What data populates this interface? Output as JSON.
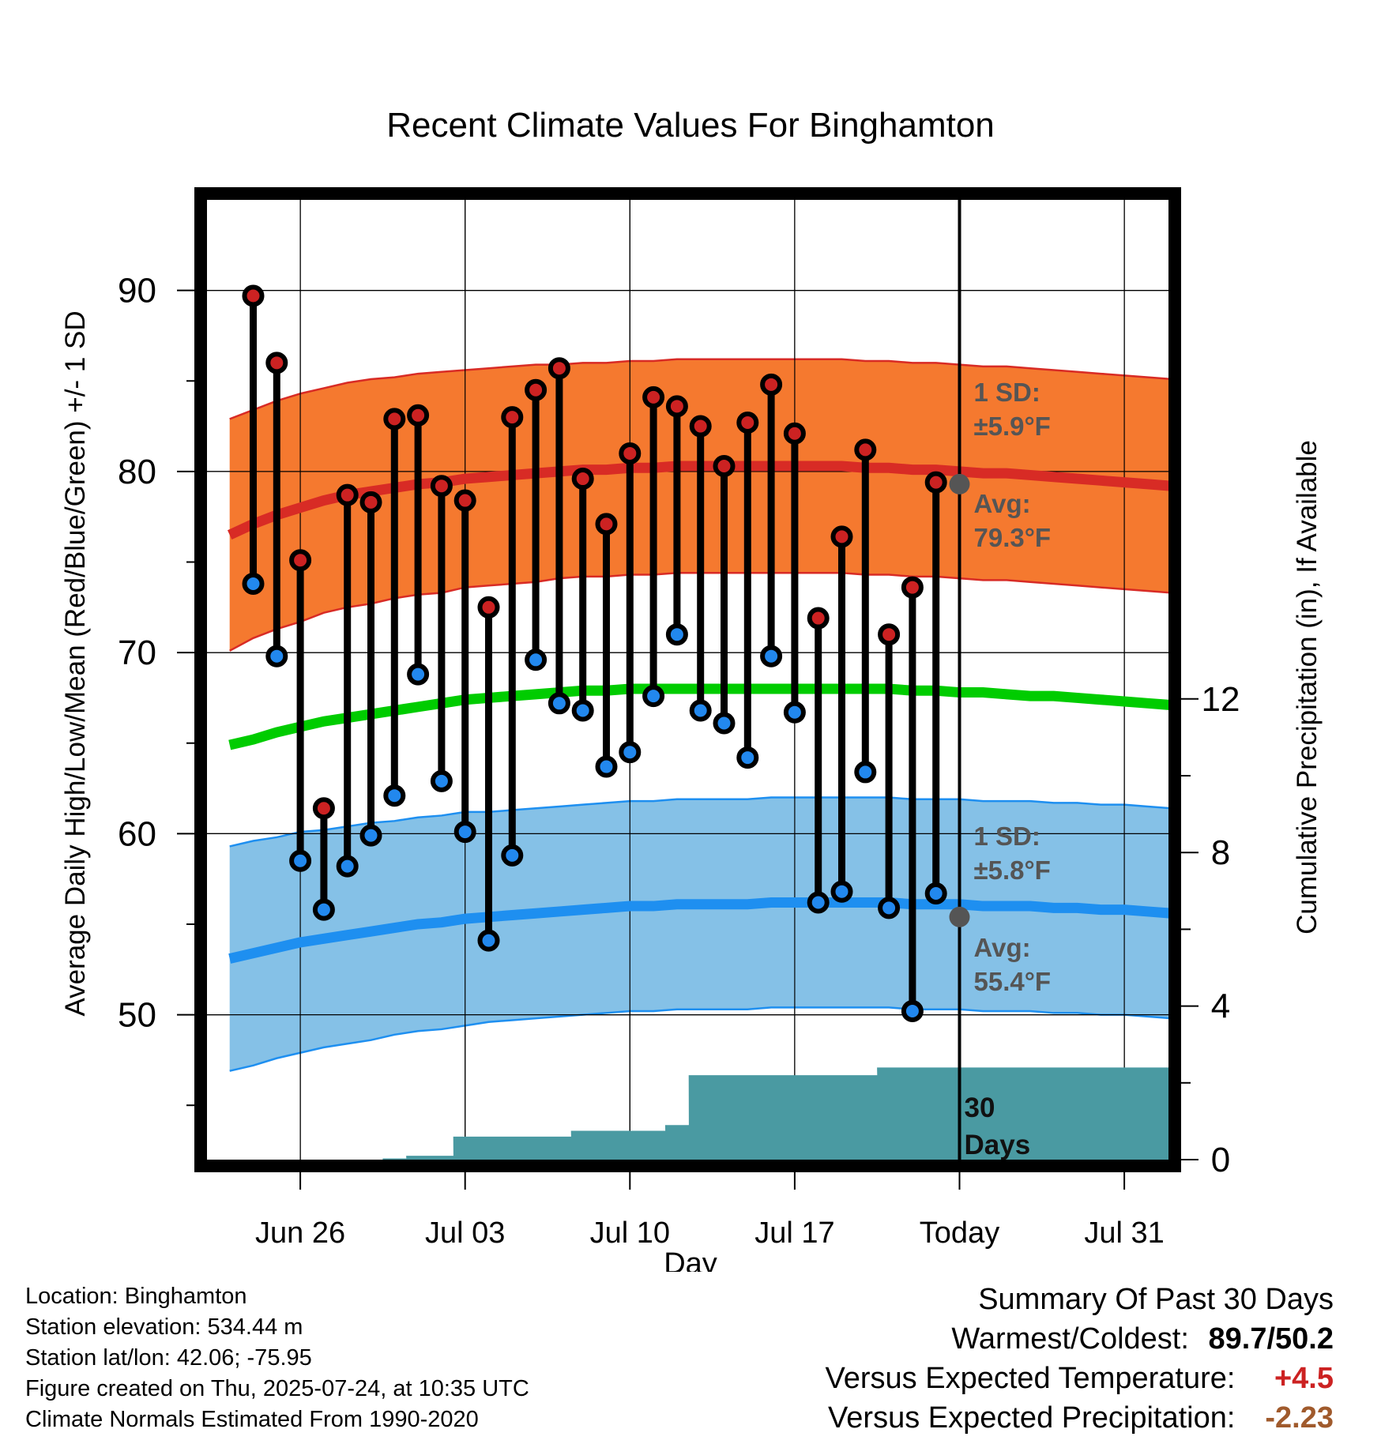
{
  "chart_data": {
    "type": "line",
    "title": "Recent Climate Values For Binghamton",
    "xlabel": "Day",
    "ylabel": "Average Daily High/Low/Mean (Red/Blue/Green) +/- 1 SD",
    "ylabel_right": "Cumulative Precipitation (in), If Available",
    "x_tick_labels": [
      "Jun 26",
      "Jul 03",
      "Jul 10",
      "Jul 17",
      "Today",
      "Jul 31"
    ],
    "y_ticks": [
      50,
      60,
      70,
      80,
      90
    ],
    "y2_ticks": [
      0,
      4,
      8,
      12
    ],
    "ylim": [
      42,
      95
    ],
    "y2lim": [
      0,
      25
    ],
    "grid": true,
    "days": [
      "Jun 23",
      "Jun 24",
      "Jun 25",
      "Jun 26",
      "Jun 27",
      "Jun 28",
      "Jun 29",
      "Jun 30",
      "Jul 01",
      "Jul 02",
      "Jul 03",
      "Jul 04",
      "Jul 05",
      "Jul 06",
      "Jul 07",
      "Jul 08",
      "Jul 09",
      "Jul 10",
      "Jul 11",
      "Jul 12",
      "Jul 13",
      "Jul 14",
      "Jul 15",
      "Jul 16",
      "Jul 17",
      "Jul 18",
      "Jul 19",
      "Jul 20",
      "Jul 21",
      "Jul 22",
      "Jul 23",
      "Jul 24",
      "Jul 25",
      "Jul 26",
      "Jul 27",
      "Jul 28",
      "Jul 29",
      "Jul 30",
      "Jul 31",
      "Aug 01",
      "Aug 02",
      "Aug 03"
    ],
    "observed_days": [
      "Jun 24",
      "Jun 25",
      "Jun 26",
      "Jun 27",
      "Jun 28",
      "Jun 29",
      "Jun 30",
      "Jul 01",
      "Jul 02",
      "Jul 03",
      "Jul 04",
      "Jul 05",
      "Jul 06",
      "Jul 07",
      "Jul 08",
      "Jul 09",
      "Jul 10",
      "Jul 11",
      "Jul 12",
      "Jul 13",
      "Jul 14",
      "Jul 15",
      "Jul 16",
      "Jul 17",
      "Jul 18",
      "Jul 19",
      "Jul 20",
      "Jul 21",
      "Jul 22",
      "Jul 23"
    ],
    "series": [
      {
        "name": "High",
        "values": [
          89.7,
          86.0,
          75.1,
          61.4,
          78.7,
          78.3,
          82.9,
          83.1,
          79.2,
          78.4,
          72.5,
          83.0,
          84.5,
          85.7,
          79.6,
          77.1,
          81.0,
          84.1,
          83.6,
          82.5,
          80.3,
          82.7,
          84.8,
          82.1,
          71.9,
          76.4,
          81.2,
          71.0,
          73.6,
          79.4
        ]
      },
      {
        "name": "Low",
        "values": [
          73.8,
          69.8,
          58.5,
          55.8,
          58.2,
          59.9,
          62.1,
          68.8,
          62.9,
          60.1,
          54.1,
          58.8,
          69.6,
          67.2,
          66.8,
          63.7,
          64.5,
          67.6,
          71.0,
          66.8,
          66.1,
          64.2,
          69.8,
          66.7,
          56.2,
          56.8,
          63.4,
          55.9,
          50.2,
          56.7
        ]
      }
    ],
    "normal_high": [
      76.5,
      77.1,
      77.6,
      78.0,
      78.4,
      78.7,
      78.9,
      79.1,
      79.3,
      79.4,
      79.6,
      79.7,
      79.8,
      79.9,
      80.0,
      80.1,
      80.1,
      80.2,
      80.2,
      80.3,
      80.3,
      80.3,
      80.3,
      80.3,
      80.3,
      80.3,
      80.3,
      80.2,
      80.2,
      80.1,
      80.1,
      80.0,
      79.9,
      79.9,
      79.8,
      79.7,
      79.6,
      79.5,
      79.4,
      79.3,
      79.2,
      79.0
    ],
    "normal_high_sd": [
      6.4,
      6.3,
      6.3,
      6.3,
      6.2,
      6.2,
      6.2,
      6.1,
      6.1,
      6.1,
      6.0,
      6.0,
      6.0,
      6.0,
      5.9,
      5.9,
      5.9,
      5.9,
      5.9,
      5.9,
      5.9,
      5.9,
      5.9,
      5.9,
      5.9,
      5.9,
      5.9,
      5.9,
      5.9,
      5.9,
      5.9,
      5.9,
      5.9,
      5.9,
      5.9,
      5.9,
      5.9,
      5.9,
      5.9,
      5.9,
      5.9,
      5.9
    ],
    "normal_low": [
      53.1,
      53.4,
      53.7,
      54.0,
      54.2,
      54.4,
      54.6,
      54.8,
      55.0,
      55.1,
      55.3,
      55.4,
      55.5,
      55.6,
      55.7,
      55.8,
      55.9,
      56.0,
      56.0,
      56.1,
      56.1,
      56.1,
      56.1,
      56.2,
      56.2,
      56.2,
      56.2,
      56.2,
      56.2,
      56.1,
      56.1,
      56.1,
      56.0,
      56.0,
      56.0,
      55.9,
      55.9,
      55.8,
      55.8,
      55.7,
      55.6,
      55.5
    ],
    "normal_low_sd": [
      6.2,
      6.2,
      6.1,
      6.1,
      6.0,
      6.0,
      6.0,
      5.9,
      5.9,
      5.9,
      5.9,
      5.8,
      5.8,
      5.8,
      5.8,
      5.8,
      5.8,
      5.8,
      5.8,
      5.8,
      5.8,
      5.8,
      5.8,
      5.8,
      5.8,
      5.8,
      5.8,
      5.8,
      5.8,
      5.8,
      5.8,
      5.8,
      5.8,
      5.8,
      5.8,
      5.8,
      5.8,
      5.8,
      5.8,
      5.8,
      5.8,
      5.8
    ],
    "normal_mean": [
      64.9,
      65.2,
      65.6,
      65.9,
      66.2,
      66.4,
      66.6,
      66.8,
      67.0,
      67.2,
      67.4,
      67.5,
      67.6,
      67.7,
      67.8,
      67.9,
      67.9,
      68.0,
      68.0,
      68.0,
      68.0,
      68.0,
      68.0,
      68.0,
      68.0,
      68.0,
      68.0,
      68.0,
      68.0,
      67.9,
      67.9,
      67.8,
      67.8,
      67.7,
      67.6,
      67.6,
      67.5,
      67.4,
      67.3,
      67.2,
      67.1,
      67.0
    ],
    "cumulative_precipitation": [
      0.0,
      0.0,
      0.0,
      0.0,
      0.0,
      0.0,
      0.03,
      0.1,
      0.1,
      0.6,
      0.6,
      0.6,
      0.6,
      0.6,
      0.75,
      0.75,
      0.75,
      0.75,
      0.9,
      2.2,
      2.2,
      2.2,
      2.2,
      2.2,
      2.2,
      2.2,
      2.2,
      2.4,
      2.4,
      2.4
    ],
    "annotations": {
      "high_sd_label": "1 SD:",
      "high_sd_value": "±5.9°F",
      "high_avg_label": "Avg:",
      "high_avg_value": "79.3°F",
      "low_sd_label": "1 SD:",
      "low_sd_value": "±5.8°F",
      "low_avg_label": "Avg:",
      "low_avg_value": "55.4°F",
      "window_label_1": "30",
      "window_label_2": "Days"
    },
    "today_high_normal": 79.3,
    "today_low_normal": 55.4
  },
  "colors": {
    "high_band": "#f5792f",
    "high_line": "#d82b25",
    "low_band": "#85c1e7",
    "low_line": "#1e8ff0",
    "mean_line": "#00cc00",
    "precip": "#4a9aa2",
    "high_dot": "#cc2222",
    "low_dot": "#2288ee",
    "positive_anomaly": "#cc2222",
    "negative_anomaly": "#a05a2c"
  },
  "footer": {
    "location": "Location: Binghamton",
    "elevation": "Station elevation: 534.44 m",
    "latlon": "Station lat/lon: 42.06; -75.95",
    "created": "Figure created on Thu, 2025-07-24, at 10:35 UTC",
    "normals": "Climate Normals Estimated From 1990-2020"
  },
  "summary": {
    "title": "Summary Of Past 30 Days",
    "warm_cold_label": "Warmest/Coldest:",
    "warmest": "89.7",
    "coldest": "50.2",
    "temp_label": "Versus Expected Temperature:",
    "temp_value": "+4.5",
    "precip_label": "Versus Expected Precipitation:",
    "precip_value": "-2.23"
  }
}
